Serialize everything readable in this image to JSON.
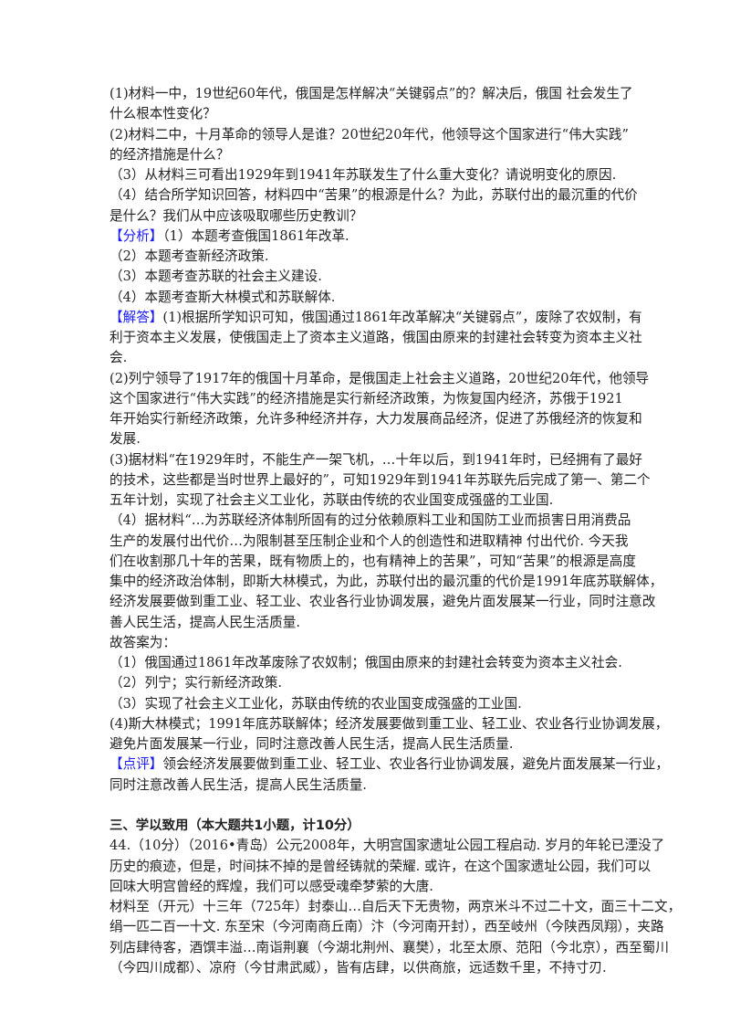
{
  "question_parts": [
    {
      "text": "(1)材料一中，19世纪60年代，俄国是怎样解决“关键弱点”的？解决后，俄国 社会发生了"
    },
    {
      "text": "什么根本性变化？"
    },
    {
      "text": "(2)材料二中，十月革命的领导人是谁？20世纪20年代，他领导这个国家进行“伟大实践”"
    },
    {
      "text": "的经济措施是什么？"
    },
    {
      "text": "（3）从材料三可看出1929年到1941年苏联发生了什么重大变化？请说明变化的原因."
    },
    {
      "text": "（4）结合所学知识回答，材料四中“苦果”的根源是什么？为此，苏联付出的最沉重的代价"
    },
    {
      "text": "是什么？我们从中应该吸取哪些历史教训？"
    }
  ],
  "analysis": [
    {
      "label": "【分析】",
      "text": "（1）本题考查俄国1861年改革."
    },
    {
      "text": "（2）本题考查新经济政策."
    },
    {
      "text": "（3）本题考查苏联的社会主义建设."
    },
    {
      "text": "（4）本题考查斯大林模式和苏联解体."
    }
  ],
  "answer": [
    {
      "label": "【解答】",
      "text": "(1)根据所学知识可知，俄国通过1861年改革解决“关键弱点”，废除了农奴制，有"
    },
    {
      "text": "利于资本主义发展，使俄国走上了资本主义道路，俄国由原来的封建社会转变为资本主义社"
    },
    {
      "text": "会."
    },
    {
      "text": "(2)列宁领导了1917年的俄国十月革命，是俄国走上社会主义道路，20世纪20年代，他领导"
    },
    {
      "text": "这个国家进行“伟大实践”的经济措施是实行新经济政策，为恢复国内经济，苏俄于1921"
    },
    {
      "text": "年开始实行新经济政策，允许多种经济并存，大力发展商品经济，促进了苏俄经济的恢复和"
    },
    {
      "text": "发展."
    },
    {
      "text": "(3)据材料“在1929年时，不能生产一架飞机，…十年以后，到1941年时，已经拥有了最好"
    },
    {
      "text": "的技术，这些都是当时世界上最好的”，可知1929年到1941年苏联先后完成了第一、第二个"
    },
    {
      "text": "五年计划，实现了社会主义工业化，苏联由传统的农业国变成强盛的工业国."
    },
    {
      "text": "（4）据材料“…为苏联经济体制所固有的过分依赖原料工业和国防工业而损害日用消费品"
    },
    {
      "text": "生产的发展付出代价…为限制甚至压制企业和个人的创造性和进取精神 付出代价. 今天我"
    },
    {
      "text": "们在收割那几十年的苦果，既有物质上的，也有精神上的苦果”，可知“苦果”的根源是高度"
    },
    {
      "text": "集中的经济政治体制，即斯大林模式，为此，苏联付出的最沉重的代价是1991年底苏联解体，"
    },
    {
      "text": "经济发展要做到重工业、轻工业、农业各行业协调发展，避免片面发展某一行业，同时注意改"
    },
    {
      "text": "善人民生活，提高人民生活质量."
    },
    {
      "text": "故答案为："
    },
    {
      "text": "（1）俄国通过1861年改革废除了农奴制；俄国由原来的封建社会转变为资本主义社会."
    },
    {
      "text": "（2）列宁；实行新经济政策."
    },
    {
      "text": "（3）实现了社会主义工业化，苏联由传统的农业国变成强盛的工业国."
    },
    {
      "text": "(4)斯大林模式；1991年底苏联解体；经济发展要做到重工业、轻工业、农业各行业协调发展，"
    },
    {
      "text": "避免片面发展某一行业，同时注意改善人民生活，提高人民生活质量."
    }
  ],
  "comment": [
    {
      "label": "【点评】",
      "text": "领会经济发展要做到重工业、轻工业、农业各行业协调发展，避免片面发展某一行业，"
    },
    {
      "text": "同时注意改善人民生活，提高人民生活质量."
    }
  ],
  "section_heading": "三、学以致用（本大题共1小题，计10分）",
  "question44": [
    {
      "text": "44.（10分）（2016•青岛）公元2008年，大明宫国家遗址公园工程启动. 岁月的年轮已湮没了"
    },
    {
      "text": "历史的痕迹，但是，时间抹不掉的是曾经铸就的荣耀. 或许，在这个国家遗址公园，我们可以"
    },
    {
      "text": "回味大明宫曾经的辉煌，我们可以感受魂牵梦萦的大唐."
    },
    {
      "text": "材料至（开元）十三年（725年）封泰山…自后天下无贵物，两京米斗不过二十文，面三十二文，"
    },
    {
      "text": "绢一匹二百一十文. 东至宋（今河南商丘南）汴（今河南开封），西至岐州（今陕西凤翔），夹路"
    },
    {
      "text": "列店肆待客，酒馔丰溢…南诣荆襄（今湖北荆州、襄樊），北至太原、范阳（今北京），西至蜀川"
    },
    {
      "text": "（今四川成都）、凉府（今甘肃武威），皆有店肆，以供商旅，远适数千里，不持寸刃."
    }
  ],
  "colors": {
    "label": "#1a1aff",
    "text": "#222222"
  }
}
